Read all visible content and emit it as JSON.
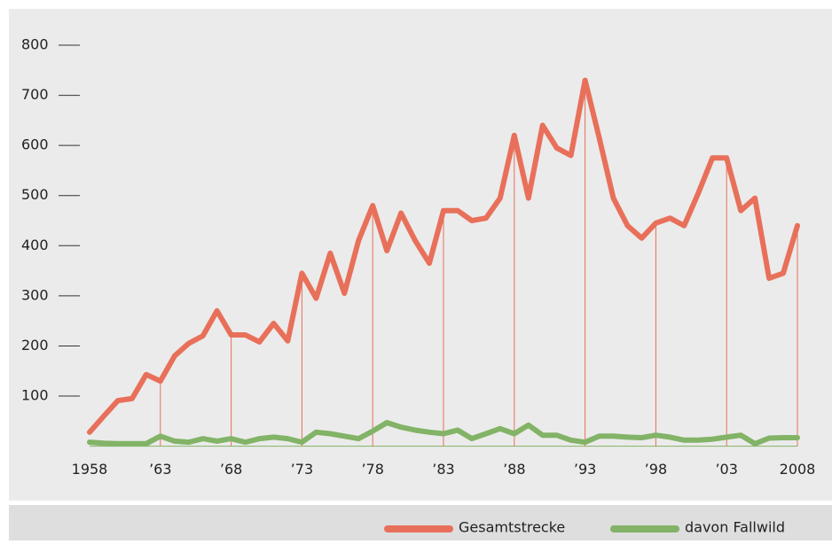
{
  "chart_data": {
    "type": "line",
    "x": [
      1958,
      1959,
      1960,
      1961,
      1962,
      1963,
      1964,
      1965,
      1966,
      1967,
      1968,
      1969,
      1970,
      1971,
      1972,
      1973,
      1974,
      1975,
      1976,
      1977,
      1978,
      1979,
      1980,
      1981,
      1982,
      1983,
      1984,
      1985,
      1986,
      1987,
      1988,
      1989,
      1990,
      1991,
      1992,
      1993,
      1994,
      1995,
      1996,
      1997,
      1998,
      1999,
      2000,
      2001,
      2002,
      2003,
      2004,
      2005,
      2006,
      2007,
      2008
    ],
    "series": [
      {
        "name": "Gesamtstrecke",
        "color": "#e8705a",
        "values": [
          28,
          60,
          91,
          95,
          143,
          130,
          180,
          205,
          220,
          270,
          222,
          222,
          208,
          245,
          210,
          345,
          295,
          385,
          305,
          410,
          480,
          390,
          465,
          410,
          365,
          470,
          470,
          450,
          455,
          495,
          620,
          495,
          640,
          595,
          580,
          730,
          615,
          495,
          440,
          415,
          445,
          455,
          440,
          505,
          575,
          575,
          470,
          495,
          335,
          345,
          440
        ]
      },
      {
        "name": "davon Fallwild",
        "color": "#82b366",
        "values": [
          8,
          6,
          5,
          5,
          5,
          20,
          10,
          8,
          15,
          10,
          15,
          8,
          15,
          18,
          15,
          8,
          28,
          25,
          20,
          15,
          30,
          47,
          38,
          32,
          28,
          25,
          32,
          15,
          25,
          35,
          25,
          42,
          22,
          22,
          12,
          8,
          20,
          20,
          18,
          17,
          22,
          18,
          12,
          12,
          14,
          18,
          22,
          5,
          16,
          17,
          17
        ]
      }
    ],
    "xlim": [
      1958,
      2008
    ],
    "xticks": [
      1958,
      {
        "value": 1963,
        "label": "’63"
      },
      {
        "value": 1968,
        "label": "’68"
      },
      {
        "value": 1973,
        "label": "’73"
      },
      {
        "value": 1978,
        "label": "’78"
      },
      {
        "value": 1983,
        "label": "’83"
      },
      {
        "value": 1988,
        "label": "’88"
      },
      {
        "value": 1993,
        "label": "’93"
      },
      {
        "value": 1998,
        "label": "’98"
      },
      {
        "value": 2003,
        "label": "’03"
      },
      2008
    ],
    "ylim": [
      0,
      800
    ],
    "yticks": [
      100,
      200,
      300,
      400,
      500,
      600,
      700,
      800
    ]
  }
}
